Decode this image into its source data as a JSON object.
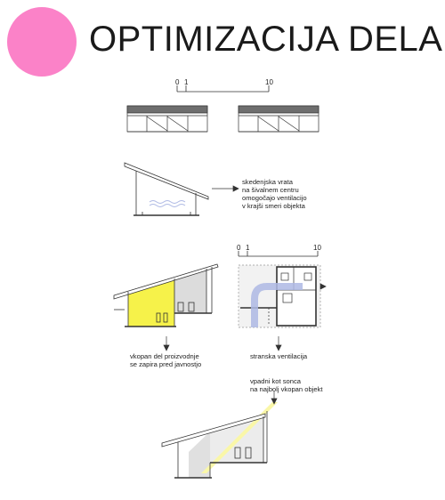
{
  "header": {
    "title": "OPTIMIZACIJA DELA",
    "accent_color": "#fb82c8"
  },
  "scale_bar_top": {
    "tick_0": "0",
    "tick_1": "1",
    "tick_10": "10"
  },
  "scale_bar_mid": {
    "tick_0": "0",
    "tick_1": "1",
    "tick_10": "10"
  },
  "annotations": {
    "ventilation_doors": [
      "skedenjska vrata",
      "na šivalnem centru",
      "omogočajo ventilacijo",
      "v krajši smeri objekta"
    ],
    "sunken_production": [
      "vkopan del proizvodnje",
      "se zapira pred javnostjo"
    ],
    "side_ventilation": [
      "stranska ventilacija"
    ],
    "sun_angle": [
      "vpadni kot sonca",
      "na najbolj vkopan objekt"
    ]
  },
  "colors": {
    "highlight_yellow": "#f6f24a",
    "light_yellow": "#faf7a8",
    "ventilation_blue": "#aeb9e4",
    "line": "#333333",
    "grey_fill": "#dcdcdc"
  }
}
